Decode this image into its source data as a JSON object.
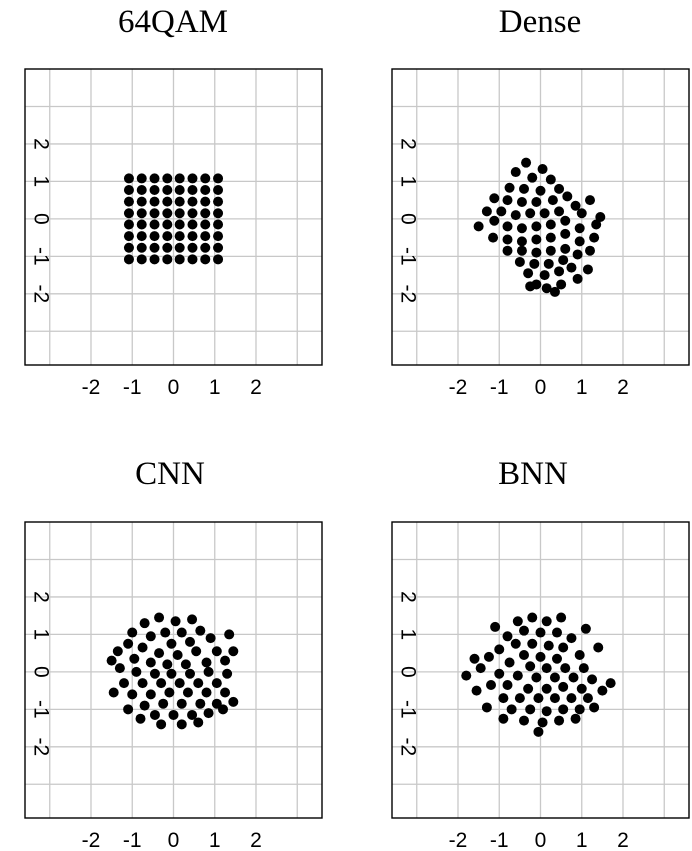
{
  "chart_data": [
    {
      "type": "scatter",
      "title": "64QAM",
      "xlabel": "",
      "ylabel": "",
      "xlim": [
        -3.6,
        3.6
      ],
      "ylim": [
        -3.9,
        4.0
      ],
      "xticks": [
        -2,
        -1,
        0,
        1,
        2
      ],
      "yticks": [
        -2,
        -1,
        0,
        1,
        2
      ],
      "grid": true,
      "points": [
        [
          -1.08,
          1.08
        ],
        [
          -0.77,
          1.08
        ],
        [
          -0.46,
          1.08
        ],
        [
          -0.15,
          1.08
        ],
        [
          0.15,
          1.08
        ],
        [
          0.46,
          1.08
        ],
        [
          0.77,
          1.08
        ],
        [
          1.08,
          1.08
        ],
        [
          -1.08,
          0.77
        ],
        [
          -0.77,
          0.77
        ],
        [
          -0.46,
          0.77
        ],
        [
          -0.15,
          0.77
        ],
        [
          0.15,
          0.77
        ],
        [
          0.46,
          0.77
        ],
        [
          0.77,
          0.77
        ],
        [
          1.08,
          0.77
        ],
        [
          -1.08,
          0.46
        ],
        [
          -0.77,
          0.46
        ],
        [
          -0.46,
          0.46
        ],
        [
          -0.15,
          0.46
        ],
        [
          0.15,
          0.46
        ],
        [
          0.46,
          0.46
        ],
        [
          0.77,
          0.46
        ],
        [
          1.08,
          0.46
        ],
        [
          -1.08,
          0.15
        ],
        [
          -0.77,
          0.15
        ],
        [
          -0.46,
          0.15
        ],
        [
          -0.15,
          0.15
        ],
        [
          0.15,
          0.15
        ],
        [
          0.46,
          0.15
        ],
        [
          0.77,
          0.15
        ],
        [
          1.08,
          0.15
        ],
        [
          -1.08,
          -0.15
        ],
        [
          -0.77,
          -0.15
        ],
        [
          -0.46,
          -0.15
        ],
        [
          -0.15,
          -0.15
        ],
        [
          0.15,
          -0.15
        ],
        [
          0.46,
          -0.15
        ],
        [
          0.77,
          -0.15
        ],
        [
          1.08,
          -0.15
        ],
        [
          -1.08,
          -0.46
        ],
        [
          -0.77,
          -0.46
        ],
        [
          -0.46,
          -0.46
        ],
        [
          -0.15,
          -0.46
        ],
        [
          0.15,
          -0.46
        ],
        [
          0.46,
          -0.46
        ],
        [
          0.77,
          -0.46
        ],
        [
          1.08,
          -0.46
        ],
        [
          -1.08,
          -0.77
        ],
        [
          -0.77,
          -0.77
        ],
        [
          -0.46,
          -0.77
        ],
        [
          -0.15,
          -0.77
        ],
        [
          0.15,
          -0.77
        ],
        [
          0.46,
          -0.77
        ],
        [
          0.77,
          -0.77
        ],
        [
          1.08,
          -0.77
        ],
        [
          -1.08,
          -1.08
        ],
        [
          -0.77,
          -1.08
        ],
        [
          -0.46,
          -1.08
        ],
        [
          -0.15,
          -1.08
        ],
        [
          0.15,
          -1.08
        ],
        [
          0.46,
          -1.08
        ],
        [
          0.77,
          -1.08
        ],
        [
          1.08,
          -1.08
        ]
      ]
    },
    {
      "type": "scatter",
      "title": "Dense",
      "xlabel": "",
      "ylabel": "",
      "xlim": [
        -3.6,
        3.6
      ],
      "ylim": [
        -3.9,
        4.0
      ],
      "xticks": [
        -2,
        -1,
        0,
        1,
        2
      ],
      "yticks": [
        -2,
        -1,
        0,
        1,
        2
      ],
      "grid": true,
      "points": [
        [
          -0.35,
          1.5
        ],
        [
          0.05,
          1.33
        ],
        [
          -0.6,
          1.25
        ],
        [
          -0.2,
          1.1
        ],
        [
          0.25,
          1.05
        ],
        [
          -0.75,
          0.83
        ],
        [
          -0.4,
          0.8
        ],
        [
          0.0,
          0.75
        ],
        [
          0.45,
          0.8
        ],
        [
          -1.12,
          0.55
        ],
        [
          -0.8,
          0.5
        ],
        [
          -0.45,
          0.45
        ],
        [
          -0.1,
          0.45
        ],
        [
          0.3,
          0.5
        ],
        [
          0.65,
          0.6
        ],
        [
          -1.3,
          0.2
        ],
        [
          -0.95,
          0.2
        ],
        [
          -0.6,
          0.1
        ],
        [
          -0.25,
          0.15
        ],
        [
          0.1,
          0.15
        ],
        [
          0.45,
          0.2
        ],
        [
          0.85,
          0.35
        ],
        [
          1.2,
          0.5
        ],
        [
          -1.5,
          -0.2
        ],
        [
          -1.12,
          -0.05
        ],
        [
          -0.8,
          -0.2
        ],
        [
          -0.45,
          -0.25
        ],
        [
          -0.1,
          -0.2
        ],
        [
          0.25,
          -0.15
        ],
        [
          0.6,
          -0.05
        ],
        [
          1.0,
          0.15
        ],
        [
          1.45,
          0.05
        ],
        [
          -1.15,
          -0.5
        ],
        [
          -0.8,
          -0.55
        ],
        [
          -0.45,
          -0.6
        ],
        [
          -0.1,
          -0.55
        ],
        [
          0.25,
          -0.5
        ],
        [
          0.6,
          -0.4
        ],
        [
          0.95,
          -0.25
        ],
        [
          1.35,
          -0.15
        ],
        [
          -0.8,
          -0.85
        ],
        [
          -0.45,
          -0.85
        ],
        [
          -0.1,
          -0.9
        ],
        [
          0.25,
          -0.85
        ],
        [
          0.6,
          -0.8
        ],
        [
          0.95,
          -0.6
        ],
        [
          1.3,
          -0.5
        ],
        [
          -0.5,
          -1.15
        ],
        [
          -0.15,
          -1.2
        ],
        [
          0.2,
          -1.2
        ],
        [
          0.55,
          -1.1
        ],
        [
          0.9,
          -0.95
        ],
        [
          -0.3,
          -1.45
        ],
        [
          0.1,
          -1.5
        ],
        [
          0.45,
          -1.4
        ],
        [
          0.75,
          -1.3
        ],
        [
          0.5,
          -1.75
        ],
        [
          0.15,
          -1.85
        ],
        [
          -0.1,
          -1.75
        ],
        [
          0.9,
          -1.6
        ],
        [
          1.15,
          -1.35
        ],
        [
          1.2,
          -0.85
        ],
        [
          -0.25,
          -1.8
        ],
        [
          0.35,
          -1.95
        ]
      ]
    },
    {
      "type": "scatter",
      "title": "CNN",
      "xlabel": "",
      "ylabel": "",
      "xlim": [
        -3.6,
        3.6
      ],
      "ylim": [
        -3.9,
        4.0
      ],
      "xticks": [
        -2,
        -1,
        0,
        1,
        2
      ],
      "yticks": [
        -2,
        -1,
        0,
        1,
        2
      ],
      "grid": true,
      "points": [
        [
          -0.35,
          1.45
        ],
        [
          0.05,
          1.35
        ],
        [
          0.45,
          1.4
        ],
        [
          -0.7,
          1.3
        ],
        [
          -0.2,
          1.05
        ],
        [
          0.2,
          1.05
        ],
        [
          0.65,
          1.1
        ],
        [
          -1.0,
          1.05
        ],
        [
          -0.55,
          0.95
        ],
        [
          -0.05,
          0.75
        ],
        [
          0.4,
          0.8
        ],
        [
          0.9,
          0.9
        ],
        [
          -1.1,
          0.75
        ],
        [
          -0.75,
          0.65
        ],
        [
          -0.35,
          0.5
        ],
        [
          0.1,
          0.45
        ],
        [
          0.55,
          0.55
        ],
        [
          1.05,
          0.55
        ],
        [
          -1.35,
          0.55
        ],
        [
          -0.95,
          0.35
        ],
        [
          -0.55,
          0.25
        ],
        [
          -0.15,
          0.2
        ],
        [
          0.3,
          0.2
        ],
        [
          0.8,
          0.25
        ],
        [
          1.25,
          0.3
        ],
        [
          -1.3,
          0.1
        ],
        [
          -0.9,
          0.0
        ],
        [
          -0.45,
          -0.05
        ],
        [
          -0.05,
          -0.05
        ],
        [
          0.4,
          -0.05
        ],
        [
          0.85,
          0.0
        ],
        [
          1.3,
          -0.05
        ],
        [
          -1.2,
          -0.3
        ],
        [
          -0.75,
          -0.3
        ],
        [
          -0.3,
          -0.3
        ],
        [
          0.15,
          -0.3
        ],
        [
          0.6,
          -0.3
        ],
        [
          1.05,
          -0.3
        ],
        [
          -1.0,
          -0.6
        ],
        [
          -0.55,
          -0.6
        ],
        [
          -0.1,
          -0.55
        ],
        [
          0.35,
          -0.55
        ],
        [
          0.8,
          -0.55
        ],
        [
          1.25,
          -0.55
        ],
        [
          -0.7,
          -0.9
        ],
        [
          -0.25,
          -0.85
        ],
        [
          0.2,
          -0.85
        ],
        [
          0.65,
          -0.85
        ],
        [
          1.05,
          -0.85
        ],
        [
          -0.45,
          -1.15
        ],
        [
          0.0,
          -1.15
        ],
        [
          0.45,
          -1.15
        ],
        [
          0.85,
          -1.1
        ],
        [
          -1.1,
          -1.0
        ],
        [
          -0.8,
          -1.25
        ],
        [
          0.2,
          -1.4
        ],
        [
          0.6,
          -1.35
        ],
        [
          -0.3,
          -1.4
        ],
        [
          1.2,
          -1.0
        ],
        [
          1.45,
          -0.8
        ],
        [
          -1.45,
          -0.55
        ],
        [
          -1.5,
          0.3
        ],
        [
          1.45,
          0.55
        ],
        [
          1.35,
          1.0
        ]
      ]
    },
    {
      "type": "scatter",
      "title": "BNN",
      "xlabel": "",
      "ylabel": "",
      "xlim": [
        -3.6,
        3.6
      ],
      "ylim": [
        -3.9,
        4.0
      ],
      "xticks": [
        -2,
        -1,
        0,
        1,
        2
      ],
      "yticks": [
        -2,
        -1,
        0,
        1,
        2
      ],
      "grid": true,
      "points": [
        [
          -0.2,
          1.45
        ],
        [
          0.15,
          1.35
        ],
        [
          -0.55,
          1.35
        ],
        [
          -0.4,
          1.1
        ],
        [
          0.0,
          1.05
        ],
        [
          0.4,
          1.05
        ],
        [
          -0.8,
          0.95
        ],
        [
          0.75,
          0.9
        ],
        [
          -0.6,
          0.75
        ],
        [
          -0.2,
          0.75
        ],
        [
          0.2,
          0.7
        ],
        [
          0.55,
          0.65
        ],
        [
          -1.0,
          0.6
        ],
        [
          -0.4,
          0.45
        ],
        [
          0.0,
          0.4
        ],
        [
          0.4,
          0.35
        ],
        [
          0.95,
          0.45
        ],
        [
          -1.25,
          0.4
        ],
        [
          -0.75,
          0.25
        ],
        [
          -0.25,
          0.15
        ],
        [
          0.15,
          0.1
        ],
        [
          0.6,
          0.1
        ],
        [
          1.05,
          0.1
        ],
        [
          -1.45,
          0.1
        ],
        [
          -1.0,
          -0.05
        ],
        [
          -0.55,
          -0.1
        ],
        [
          -0.1,
          -0.15
        ],
        [
          0.35,
          -0.15
        ],
        [
          0.8,
          -0.15
        ],
        [
          1.25,
          -0.2
        ],
        [
          -1.2,
          -0.35
        ],
        [
          -0.8,
          -0.35
        ],
        [
          -0.3,
          -0.45
        ],
        [
          0.15,
          -0.45
        ],
        [
          0.55,
          -0.4
        ],
        [
          1.0,
          -0.45
        ],
        [
          -0.9,
          -0.7
        ],
        [
          -0.5,
          -0.7
        ],
        [
          -0.05,
          -0.7
        ],
        [
          0.35,
          -0.7
        ],
        [
          0.75,
          -0.7
        ],
        [
          1.15,
          -0.7
        ],
        [
          -0.7,
          -1.0
        ],
        [
          -0.25,
          -1.0
        ],
        [
          0.15,
          -1.05
        ],
        [
          0.55,
          -1.0
        ],
        [
          0.95,
          -1.0
        ],
        [
          -0.4,
          -1.3
        ],
        [
          0.05,
          -1.35
        ],
        [
          0.45,
          -1.3
        ],
        [
          -0.9,
          -1.25
        ],
        [
          0.85,
          -1.25
        ],
        [
          -1.3,
          -0.95
        ],
        [
          1.3,
          -0.95
        ],
        [
          -1.55,
          -0.5
        ],
        [
          1.5,
          -0.5
        ],
        [
          -1.8,
          -0.1
        ],
        [
          1.7,
          -0.3
        ],
        [
          -1.6,
          0.35
        ],
        [
          1.4,
          0.65
        ],
        [
          1.1,
          1.15
        ],
        [
          -1.1,
          1.2
        ],
        [
          0.5,
          1.45
        ],
        [
          -0.05,
          -1.6
        ]
      ]
    }
  ]
}
